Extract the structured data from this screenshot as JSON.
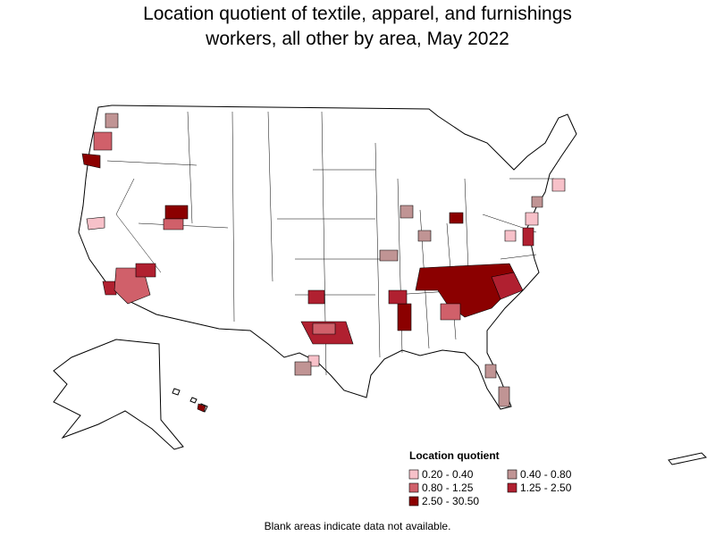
{
  "title_lines": [
    "Location quotient of textile, apparel, and furnishings",
    "workers, all other by area, May 2022"
  ],
  "legend": {
    "title": "Location quotient",
    "items": [
      {
        "label": "0.20 - 0.40",
        "color": "#f7c1c9"
      },
      {
        "label": "0.40 - 0.80",
        "color": "#c09494"
      },
      {
        "label": "0.80 - 1.25",
        "color": "#d0606a"
      },
      {
        "label": "1.25 - 2.50",
        "color": "#b02030"
      },
      {
        "label": "2.50 - 30.50",
        "color": "#8b0000"
      }
    ]
  },
  "note": "Blank areas indicate data not available."
}
